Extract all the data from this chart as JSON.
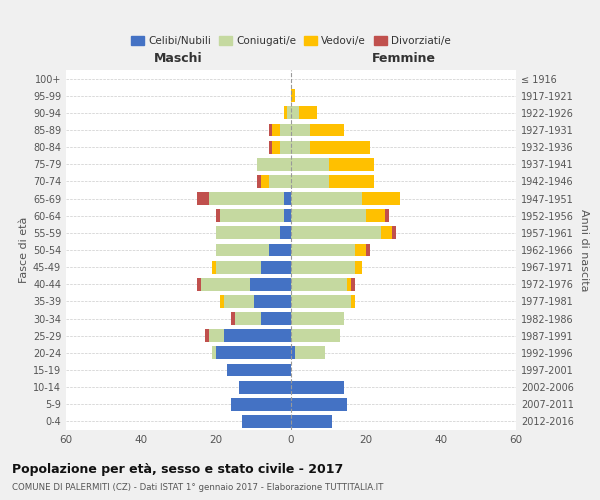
{
  "age_groups": [
    "0-4",
    "5-9",
    "10-14",
    "15-19",
    "20-24",
    "25-29",
    "30-34",
    "35-39",
    "40-44",
    "45-49",
    "50-54",
    "55-59",
    "60-64",
    "65-69",
    "70-74",
    "75-79",
    "80-84",
    "85-89",
    "90-94",
    "95-99",
    "100+"
  ],
  "birth_years": [
    "2012-2016",
    "2007-2011",
    "2002-2006",
    "1997-2001",
    "1992-1996",
    "1987-1991",
    "1982-1986",
    "1977-1981",
    "1972-1976",
    "1967-1971",
    "1962-1966",
    "1957-1961",
    "1952-1956",
    "1947-1951",
    "1942-1946",
    "1937-1941",
    "1932-1936",
    "1927-1931",
    "1922-1926",
    "1917-1921",
    "≤ 1916"
  ],
  "males": {
    "celibi": [
      13,
      16,
      14,
      17,
      20,
      18,
      8,
      10,
      11,
      8,
      6,
      3,
      2,
      2,
      0,
      0,
      0,
      0,
      0,
      0,
      0
    ],
    "coniugati": [
      0,
      0,
      0,
      0,
      1,
      4,
      7,
      8,
      13,
      12,
      14,
      17,
      17,
      20,
      6,
      9,
      3,
      3,
      1,
      0,
      0
    ],
    "vedovi": [
      0,
      0,
      0,
      0,
      0,
      0,
      0,
      1,
      0,
      1,
      0,
      0,
      0,
      0,
      2,
      0,
      2,
      2,
      1,
      0,
      0
    ],
    "divorziati": [
      0,
      0,
      0,
      0,
      0,
      1,
      1,
      0,
      1,
      0,
      0,
      0,
      1,
      3,
      1,
      0,
      1,
      1,
      0,
      0,
      0
    ]
  },
  "females": {
    "nubili": [
      11,
      15,
      14,
      0,
      1,
      0,
      0,
      0,
      0,
      0,
      0,
      0,
      0,
      0,
      0,
      0,
      0,
      0,
      0,
      0,
      0
    ],
    "coniugate": [
      0,
      0,
      0,
      0,
      8,
      13,
      14,
      16,
      15,
      17,
      17,
      24,
      20,
      19,
      10,
      10,
      5,
      5,
      2,
      0,
      0
    ],
    "vedove": [
      0,
      0,
      0,
      0,
      0,
      0,
      0,
      1,
      1,
      2,
      3,
      3,
      5,
      10,
      12,
      12,
      16,
      9,
      5,
      1,
      0
    ],
    "divorziate": [
      0,
      0,
      0,
      0,
      0,
      0,
      0,
      0,
      1,
      0,
      1,
      1,
      1,
      0,
      0,
      0,
      0,
      0,
      0,
      0,
      0
    ]
  },
  "colors": {
    "celibi": "#4472c4",
    "coniugati": "#c5d9a0",
    "vedovi": "#ffc000",
    "divorziati": "#c0504d"
  },
  "xlim": 60,
  "title": "Popolazione per età, sesso e stato civile - 2017",
  "subtitle": "COMUNE DI PALERMITI (CZ) - Dati ISTAT 1° gennaio 2017 - Elaborazione TUTTITALIA.IT",
  "header_left": "Maschi",
  "header_right": "Femmine",
  "ylabel_left": "Fasce di età",
  "ylabel_right": "Anni di nascita",
  "bg_color": "#f0f0f0",
  "plot_bg_color": "#ffffff",
  "grid_color": "#cccccc",
  "legend_labels": [
    "Celibi/Nubili",
    "Coniugati/e",
    "Vedovi/e",
    "Divorziati/e"
  ]
}
